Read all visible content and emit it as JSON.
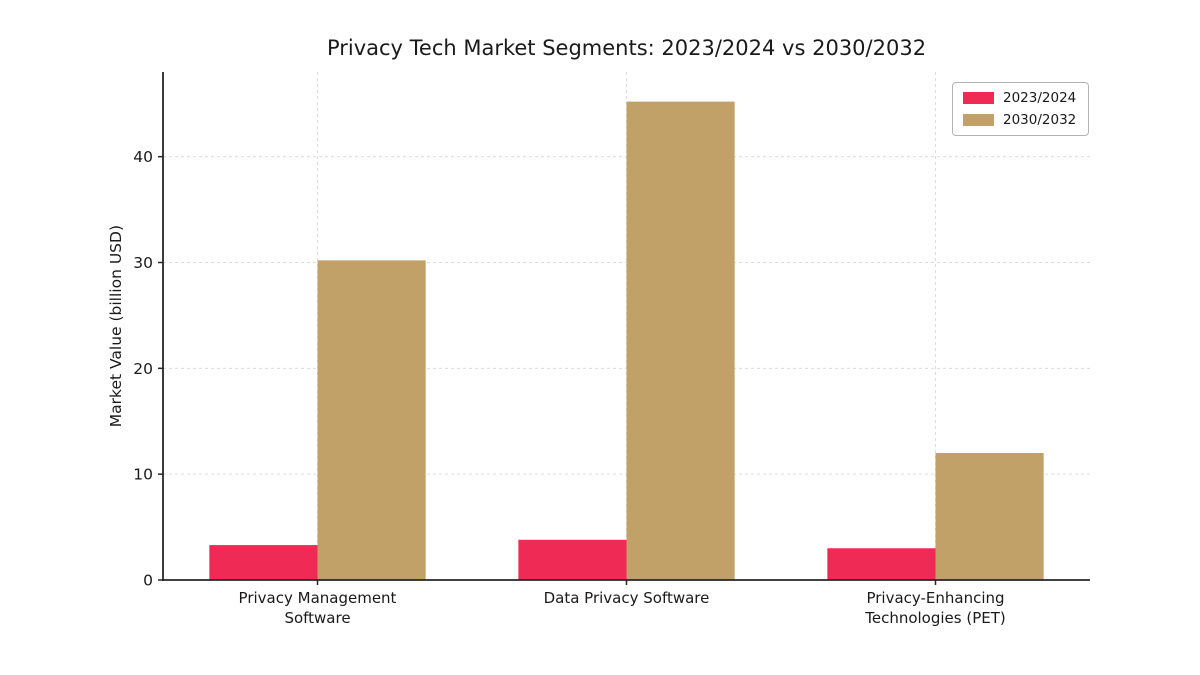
{
  "figure": {
    "background": "#ffffff",
    "spine_color": "#262626",
    "tick_label_color": "#1a1a1a",
    "grid_color": "#dcdcdc"
  },
  "chart_data": {
    "type": "bar",
    "title": "Privacy Tech Market Segments: 2023/2024 vs 2030/2032",
    "xlabel": "",
    "ylabel": "Market Value (billion USD)",
    "categories": [
      "Privacy Management\nSoftware",
      "Data Privacy Software",
      "Privacy-Enhancing\nTechnologies (PET)"
    ],
    "series": [
      {
        "name": "2023/2024",
        "color": "#EF2B55",
        "values": [
          3.3,
          3.8,
          3.0
        ]
      },
      {
        "name": "2030/2032",
        "color": "#C2A169",
        "values": [
          30.2,
          45.2,
          12.0
        ]
      }
    ],
    "yticks": [
      0,
      10,
      20,
      30,
      40
    ],
    "ylim": [
      0,
      48
    ],
    "grid": {
      "horizontal": true,
      "vertical": true,
      "style": "dashed"
    },
    "legend_position": "upper right"
  }
}
